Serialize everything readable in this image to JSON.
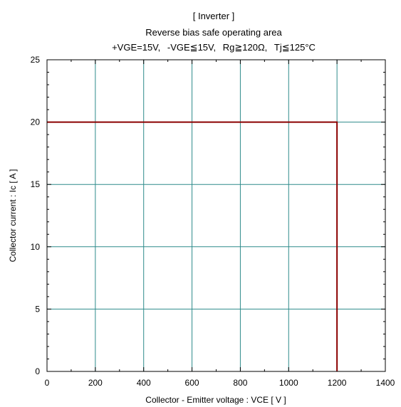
{
  "chart_data": {
    "type": "line",
    "title": "[ Inverter ]",
    "subtitle": "Reverse bias safe operating area",
    "conditions": {
      "vge_plus": "+VGE=15V,",
      "vge_minus": "-VGE≦15V,",
      "rg": "Rg≧120Ω,",
      "tj": "Tj≦125°C"
    },
    "xlabel": "Collector - Emitter voltage  :  VCE  [ V ]",
    "ylabel": "Collector current  : Ic  [ A ]",
    "xlim": [
      0,
      1400
    ],
    "ylim": [
      0,
      25
    ],
    "x_ticks": [
      0,
      200,
      400,
      600,
      800,
      1000,
      1200,
      1400
    ],
    "y_ticks": [
      0,
      5,
      10,
      15,
      20,
      25
    ],
    "grid": true,
    "grid_color": "#2e8b8b",
    "series": [
      {
        "color": "#8b0000",
        "x": [
          0,
          1200,
          1200
        ],
        "y": [
          20,
          20,
          0
        ]
      }
    ]
  }
}
